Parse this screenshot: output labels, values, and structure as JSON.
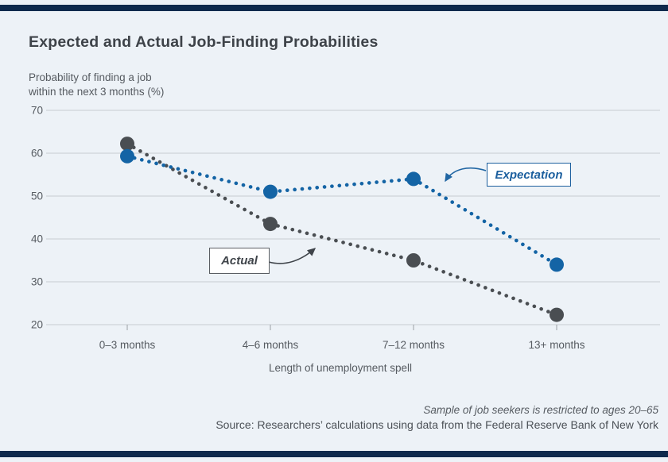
{
  "header": {
    "title": "Expected and Actual Job-Finding Probabilities"
  },
  "chart": {
    "y_axis_title_line1": "Probability of finding a job",
    "y_axis_title_line2": "within the next 3 months (%)",
    "x_axis_title": "Length of unemployment spell"
  },
  "annotations": {
    "expectation": "Expectation",
    "actual": "Actual"
  },
  "footer": {
    "note": "Sample of job seekers is restricted to ages 20–65",
    "source": "Source: Researchers’ calculations using data from the Federal Reserve Bank of New York"
  },
  "colors": {
    "expectation_blue": "#1464a5",
    "actual_gray": "#4a4e52",
    "rule_navy": "#0e2a4d",
    "background": "#edf2f7",
    "gridline": "#c7ccd2"
  },
  "chart_data": {
    "type": "line",
    "title": "Expected and Actual Job-Finding Probabilities",
    "categories": [
      "0–3 months",
      "4–6 months",
      "7–12 months",
      "13+ months"
    ],
    "series": [
      {
        "name": "Expectation",
        "color": "#1464a5",
        "values": [
          59.3,
          51,
          54,
          34
        ]
      },
      {
        "name": "Actual",
        "color": "#4a4e52",
        "values": [
          62.2,
          43.5,
          35,
          22.3
        ]
      }
    ],
    "xlabel": "Length of unemployment spell",
    "ylabel": "Probability of finding a job within the next 3 months (%)",
    "ylim": [
      20,
      70
    ],
    "yticks": [
      20,
      30,
      40,
      50,
      60,
      70
    ],
    "grid": true,
    "line_style": "dotted",
    "legend_position": "annotated callout boxes with arrows (no legend)"
  }
}
